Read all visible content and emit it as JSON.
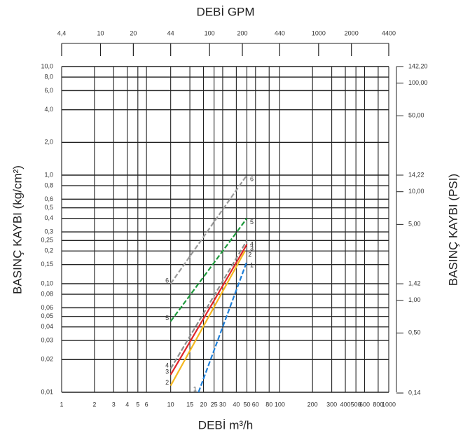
{
  "chart_data": {
    "type": "line",
    "title": "DEBİ GPM",
    "x_label": "DEBİ m³/h",
    "y_label": "BASINÇ KAYBI (kg/cm²)",
    "y2_label": "BASINÇ KAYBI (PSI)",
    "log_x": true,
    "log_y": true,
    "grid": true,
    "xlim": [
      1,
      1000
    ],
    "ylim": [
      0.01,
      10
    ],
    "xticks": [
      1,
      2,
      3,
      4,
      5,
      6,
      10,
      15,
      20,
      25,
      30,
      40,
      50,
      60,
      80,
      100,
      200,
      300,
      400,
      500,
      600,
      800,
      1000
    ],
    "yticks": [
      {
        "value": 10,
        "label": "10,0"
      },
      {
        "value": 8,
        "label": "8,0"
      },
      {
        "value": 6,
        "label": "6,0"
      },
      {
        "value": 4,
        "label": "4,0"
      },
      {
        "value": 2,
        "label": "2,0"
      },
      {
        "value": 1,
        "label": "1,0"
      },
      {
        "value": 0.8,
        "label": "0,8"
      },
      {
        "value": 0.6,
        "label": "0,6"
      },
      {
        "value": 0.5,
        "label": "0,5"
      },
      {
        "value": 0.4,
        "label": "0,4"
      },
      {
        "value": 0.3,
        "label": "0,3"
      },
      {
        "value": 0.25,
        "label": "0,25"
      },
      {
        "value": 0.2,
        "label": "0,2"
      },
      {
        "value": 0.15,
        "label": "0,15"
      },
      {
        "value": 0.1,
        "label": "0,10"
      },
      {
        "value": 0.08,
        "label": "0,08"
      },
      {
        "value": 0.06,
        "label": "0,06"
      },
      {
        "value": 0.05,
        "label": "0,05"
      },
      {
        "value": 0.04,
        "label": "0,04"
      },
      {
        "value": 0.03,
        "label": "0,03"
      },
      {
        "value": 0.02,
        "label": "0,02"
      },
      {
        "value": 0.01,
        "label": "0,01"
      }
    ],
    "x2lim": [
      4.4,
      4400
    ],
    "x2ticks": [
      {
        "value": 4.4,
        "label": "4,4"
      },
      10,
      20,
      44,
      100,
      200,
      440,
      1000,
      2000,
      4400
    ],
    "y2lim": [
      0.1422,
      142.2
    ],
    "y2ticks": [
      {
        "value": 142.2,
        "label": "142,20"
      },
      {
        "value": 100,
        "label": "100,00"
      },
      {
        "value": 50,
        "label": "50,00"
      },
      {
        "value": 14.22,
        "label": "14,22"
      },
      {
        "value": 10,
        "label": "10,00"
      },
      {
        "value": 5,
        "label": "5,00"
      },
      {
        "value": 1.42,
        "label": "1,42"
      },
      {
        "value": 1,
        "label": "1,00"
      },
      {
        "value": 0.5,
        "label": "0,50"
      },
      {
        "value": 0.14,
        "label": "0,14"
      }
    ],
    "series": [
      {
        "name": "6",
        "color": "#9a9a9a",
        "dashed": true,
        "x": [
          10,
          50
        ],
        "values": [
          0.1,
          1.0
        ]
      },
      {
        "name": "5",
        "color": "#1e9a3c",
        "dashed": true,
        "x": [
          10,
          50
        ],
        "values": [
          0.045,
          0.4
        ]
      },
      {
        "name": "4",
        "color": "#8c8c8c",
        "dashed": true,
        "x": [
          10,
          50
        ],
        "values": [
          0.0165,
          0.25
        ]
      },
      {
        "name": "3",
        "color": "#e0262a",
        "dashed": false,
        "x": [
          10,
          50
        ],
        "values": [
          0.0145,
          0.23
        ]
      },
      {
        "name": "2",
        "color": "#f5b820",
        "dashed": false,
        "x": [
          10,
          48
        ],
        "values": [
          0.0115,
          0.2
        ]
      },
      {
        "name": "1",
        "color": "#1f7fd8",
        "dashed": true,
        "x": [
          18,
          50
        ],
        "values": [
          0.01,
          0.16
        ]
      }
    ]
  }
}
